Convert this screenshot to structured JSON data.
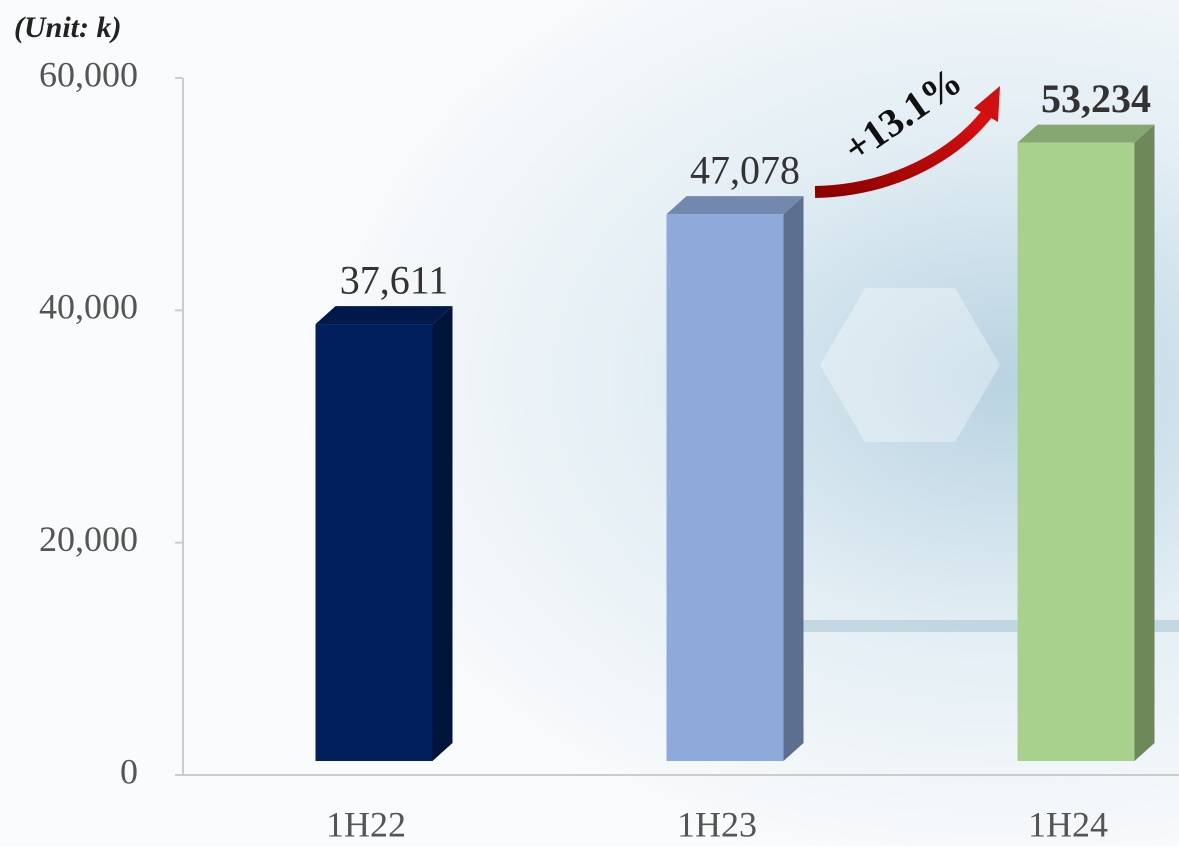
{
  "chart_data": {
    "type": "bar",
    "unit_label": "(Unit: k)",
    "categories": [
      "1H22",
      "1H23",
      "1H24"
    ],
    "values": [
      37611,
      47078,
      53234
    ],
    "value_labels": [
      "37,611",
      "47,078",
      "53,234"
    ],
    "colors": [
      "#001f5c",
      "#8eaadb",
      "#a9d18e"
    ],
    "ylim": [
      0,
      60000
    ],
    "yticks": [
      0,
      {
        "value": 20000,
        "label": "20,000"
      },
      {
        "value": 40000,
        "label": "40,000"
      },
      {
        "value": 60000,
        "label": "60,000"
      }
    ],
    "annotation": "+13.1%"
  }
}
